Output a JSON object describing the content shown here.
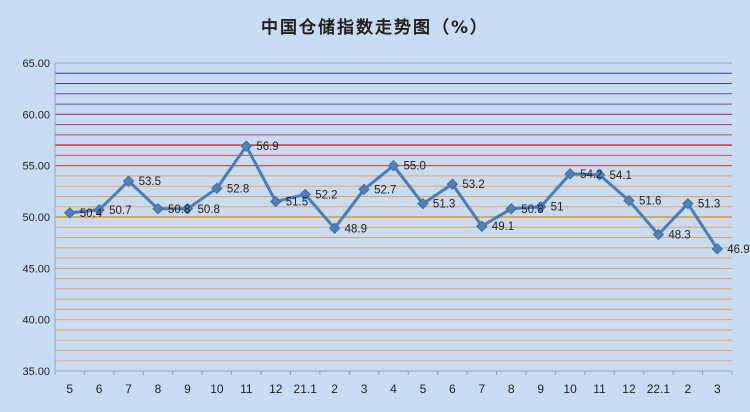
{
  "chart_data": {
    "type": "line",
    "title": "中国仓储指数走势图（%）",
    "xlabel": "",
    "ylabel": "",
    "ylim": [
      35,
      65
    ],
    "yticks": [
      "35.00",
      "40.00",
      "45.00",
      "50.00",
      "55.00",
      "60.00",
      "65.00"
    ],
    "categories": [
      "5",
      "6",
      "7",
      "8",
      "9",
      "10",
      "11",
      "12",
      "21.1",
      "2",
      "3",
      "4",
      "5",
      "6",
      "7",
      "8",
      "9",
      "10",
      "11",
      "12",
      "22.1",
      "2",
      "3"
    ],
    "series": [
      {
        "values": [
          50.4,
          50.7,
          53.5,
          50.8,
          50.8,
          52.8,
          56.9,
          51.5,
          52.2,
          48.9,
          52.7,
          55.0,
          51.3,
          53.2,
          49.1,
          50.8,
          51,
          54.2,
          54.1,
          51.6,
          48.3,
          51.3,
          46.9
        ],
        "labels": [
          "50.4",
          "50.7",
          "53.5",
          "50.8",
          "50.8",
          "52.8",
          "56.9",
          "51.5",
          "52.2",
          "48.9",
          "52.7",
          "55.0",
          "51.3",
          "53.2",
          "49.1",
          "50.8",
          "51",
          "54.2",
          "54.1",
          "51.6",
          "48.3",
          "51.3",
          "46.9"
        ]
      }
    ],
    "grid": true,
    "legend": "none",
    "colors": {
      "background": "#c8dcf3",
      "line": "#4a7ebb",
      "marker": "#4f81bd",
      "grid_low": "#f5a14a",
      "grid_50": "#f39a2a",
      "grid_55_57": "#e0473c",
      "grid_mid": "#c0396b",
      "grid_high": "#7a42a6",
      "grid_top": "#3e3ea6",
      "axis": "#8fa6c3"
    }
  }
}
